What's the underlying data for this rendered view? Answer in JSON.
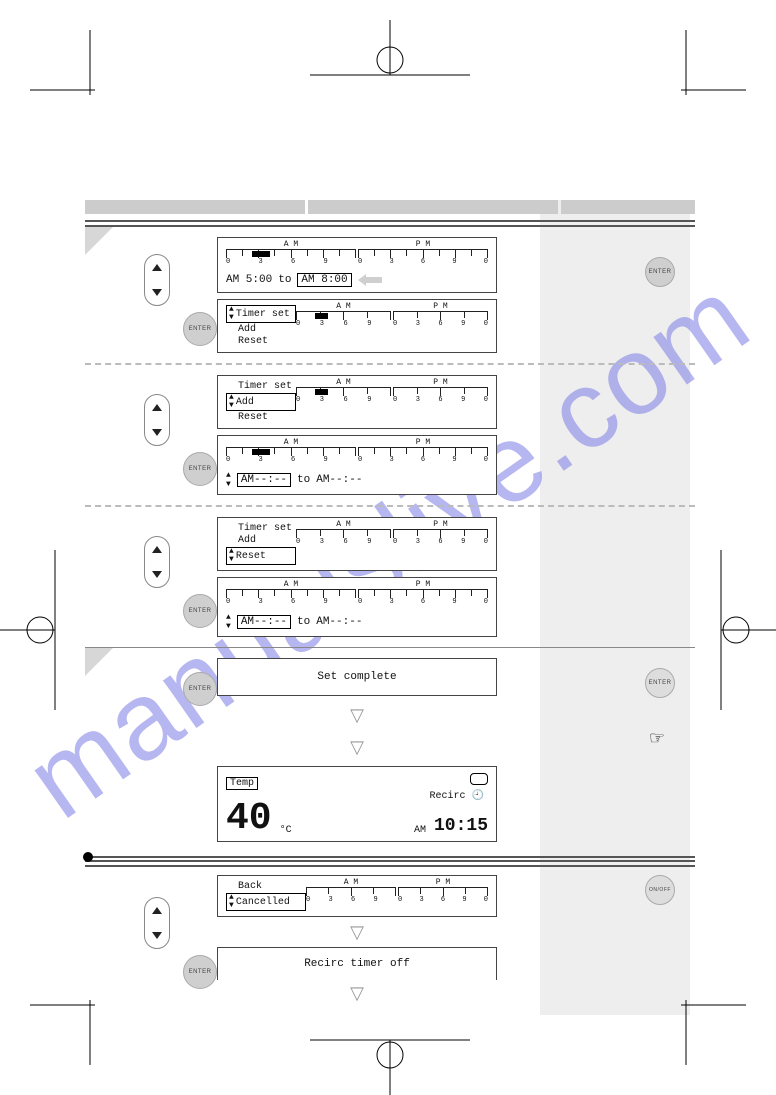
{
  "colors": {
    "header_bar_bg": "#cccccc",
    "notch_color": "#d7d7d7",
    "side_band_bg": "#eeeeee",
    "rule_color": "#555555",
    "watermark_color": "#7c7ce6",
    "watermark_opacity": 0.55,
    "button_bg": "#cfcfcf",
    "arrow_fill": "#cfcfcf",
    "lcd_text": "#111111"
  },
  "watermark_text": "manualslive.com",
  "buttons": {
    "enter_label": "ENTER",
    "onoff_label": "ON/OFF"
  },
  "timeline": {
    "am_label": "A M",
    "pm_label": "P M",
    "tick_numbers": [
      "0",
      "3",
      "6",
      "9",
      "0",
      "3",
      "6",
      "9",
      "0"
    ],
    "block_left_pct": 20,
    "block_width_pct": 14
  },
  "section1": {
    "panel1_time_from": "AM 5:00",
    "panel1_to_word": "to",
    "panel1_time_to_am": "AM",
    "panel1_time_to": "8:00",
    "panel2_menu": {
      "title": "Timer set",
      "item2": "Add",
      "item3": "Reset",
      "selected_index": 0
    }
  },
  "section2": {
    "panel1_menu": {
      "title": "Timer set",
      "item2": "Add",
      "item3": "Reset",
      "selected_index": 1
    },
    "panel2_time_from_am": "AM",
    "panel2_time_from": "--:--",
    "panel2_to_word": "to",
    "panel2_time_to": "AM--:--"
  },
  "section3": {
    "panel1_menu": {
      "title": "Timer set",
      "item2": "Add",
      "item3": "Reset",
      "selected_index": 2
    },
    "panel2_time_from_am": "AM",
    "panel2_time_from": "--:--",
    "panel2_to_word": "to",
    "panel2_time_to": "AM--:--"
  },
  "section4": {
    "set_complete": "Set complete",
    "temp_label": "Temp",
    "temp_value": "40",
    "temp_unit": "°C",
    "clock_ampm": "AM",
    "clock_time": "10:15",
    "recirc_label": "Recirc"
  },
  "section5": {
    "panel1_menu": {
      "item1": "Back",
      "item2": "Cancelled",
      "selected_index": 1
    },
    "panel2_text": "Recirc timer off"
  }
}
